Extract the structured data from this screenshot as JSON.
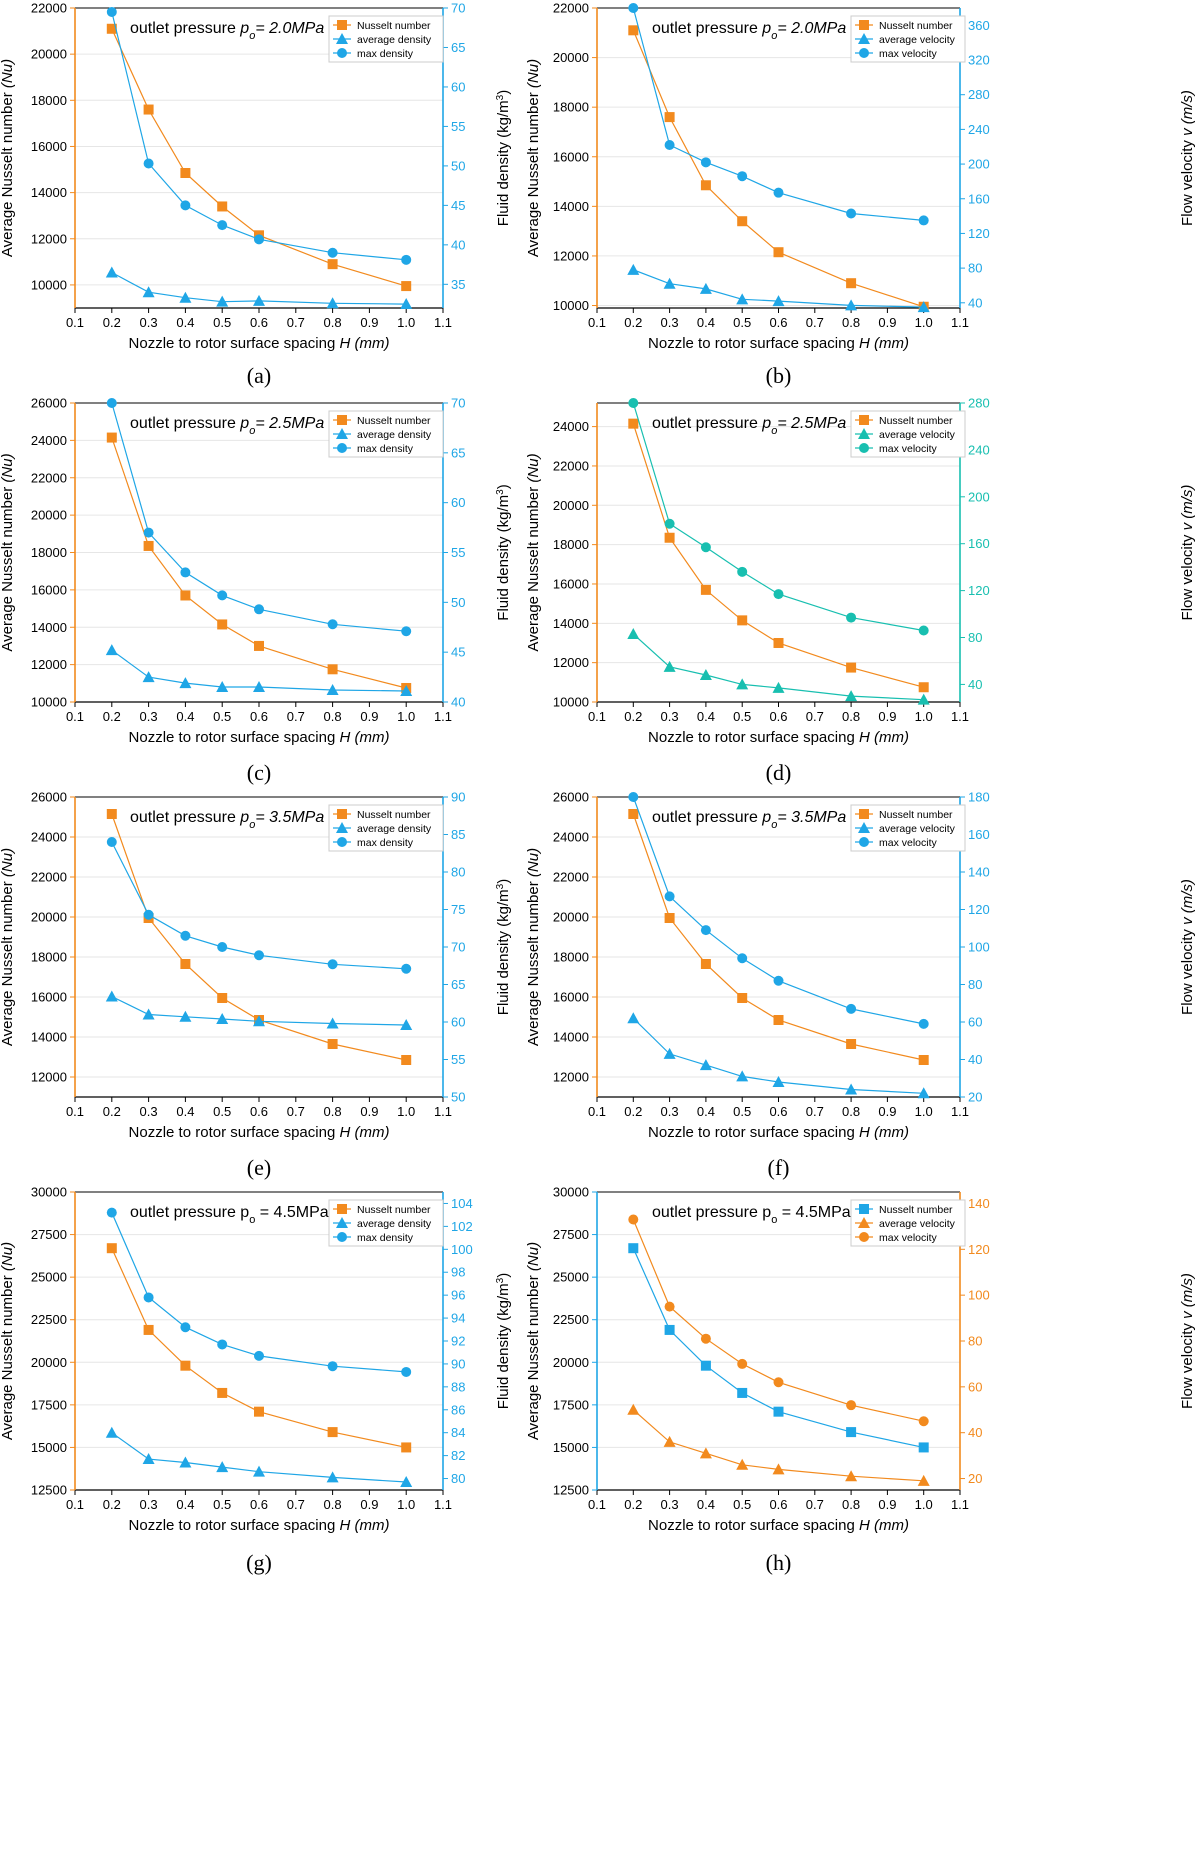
{
  "colors": {
    "orange": "#F28A1E",
    "blue": "#1FA6E6",
    "teal": "#18BFB0",
    "axis": "#000000",
    "grid": "#E6E6E6"
  },
  "common": {
    "xlabel_main": "Nozzle to rotor surface spacing ",
    "xlabel_var": "H (mm)",
    "xticks": [
      "0.1",
      "0.2",
      "0.3",
      "0.4",
      "0.5",
      "0.6",
      "0.7",
      "0.8",
      "0.9",
      "1.0",
      "1.1"
    ],
    "nu_label_main": "Average Nusselt number ",
    "nu_label_var": "(Nu)",
    "density_label": "Fluid density (kg/m",
    "density_label_sup": "3",
    "density_label_end": ")",
    "velocity_label_main": "Flow velocity ",
    "velocity_label_var": "v (m/s)"
  },
  "chart_data": [
    {
      "id": "a",
      "type": "line",
      "panel_label": "(a)",
      "title_text": "outlet pressure ",
      "title_var": "p",
      "title_sub": "o",
      "title_value": "= 2.0MPa",
      "x": [
        0.2,
        0.3,
        0.4,
        0.5,
        0.6,
        0.8,
        1.0
      ],
      "xlim": [
        0.1,
        1.1
      ],
      "left_axis": {
        "kind": "nu",
        "color": "orange",
        "ylim": [
          9000,
          22000
        ],
        "ticks": [
          "10000",
          "12000",
          "14000",
          "16000",
          "18000",
          "20000",
          "22000"
        ]
      },
      "right_axis": {
        "kind": "density",
        "color": "blue",
        "ylim": [
          32,
          70
        ],
        "ticks": [
          "35",
          "40",
          "45",
          "50",
          "55",
          "60",
          "65",
          "70"
        ]
      },
      "legend": [
        "Nusselt number",
        "average density",
        "max density"
      ],
      "series": [
        {
          "name": "Nusselt number",
          "axis": "left",
          "color": "orange",
          "marker": "square",
          "values": [
            21100,
            17600,
            14850,
            13400,
            12150,
            10900,
            9950
          ]
        },
        {
          "name": "average density",
          "axis": "right",
          "color": "blue",
          "marker": "triangle",
          "values": [
            36.5,
            34.0,
            33.3,
            32.8,
            32.9,
            32.6,
            32.5
          ]
        },
        {
          "name": "max density",
          "axis": "right",
          "color": "blue",
          "marker": "circle",
          "values": [
            69.5,
            50.3,
            45.0,
            42.5,
            40.7,
            39.0,
            38.1
          ]
        }
      ]
    },
    {
      "id": "b",
      "type": "line",
      "panel_label": "(b)",
      "title_text": "outlet pressure ",
      "title_var": "p",
      "title_sub": "o",
      "title_value": "= 2.0MPa",
      "x": [
        0.2,
        0.3,
        0.4,
        0.5,
        0.6,
        0.8,
        1.0
      ],
      "xlim": [
        0.1,
        1.1
      ],
      "left_axis": {
        "kind": "nu",
        "color": "orange",
        "ylim": [
          9900,
          22000
        ],
        "ticks": [
          "10000",
          "12000",
          "14000",
          "16000",
          "18000",
          "20000",
          "22000"
        ]
      },
      "right_axis": {
        "kind": "velocity",
        "color": "blue",
        "ylim": [
          34,
          380
        ],
        "ticks": [
          "40",
          "80",
          "120",
          "160",
          "200",
          "240",
          "280",
          "320",
          "360"
        ]
      },
      "legend": [
        "Nusselt number",
        "average velocity",
        "max velocity"
      ],
      "series": [
        {
          "name": "Nusselt number",
          "axis": "left",
          "color": "orange",
          "marker": "square",
          "values": [
            21100,
            17600,
            14850,
            13400,
            12150,
            10900,
            9950
          ]
        },
        {
          "name": "average velocity",
          "axis": "right",
          "color": "blue",
          "marker": "triangle",
          "values": [
            78,
            62,
            56,
            44,
            42,
            37,
            35
          ]
        },
        {
          "name": "max velocity",
          "axis": "right",
          "color": "blue",
          "marker": "circle",
          "values": [
            380,
            222,
            202,
            186,
            167,
            143,
            135
          ]
        }
      ]
    },
    {
      "id": "c",
      "type": "line",
      "panel_label": "(c)",
      "title_text": "outlet pressure ",
      "title_var": "p",
      "title_sub": "o",
      "title_value": "= 2.5MPa",
      "x": [
        0.2,
        0.3,
        0.4,
        0.5,
        0.6,
        0.8,
        1.0
      ],
      "xlim": [
        0.1,
        1.1
      ],
      "left_axis": {
        "kind": "nu",
        "color": "orange",
        "ylim": [
          10000,
          26000
        ],
        "ticks": [
          "10000",
          "12000",
          "14000",
          "16000",
          "18000",
          "20000",
          "22000",
          "24000",
          "26000"
        ]
      },
      "right_axis": {
        "kind": "density",
        "color": "blue",
        "ylim": [
          40,
          70
        ],
        "ticks": [
          "40",
          "45",
          "50",
          "55",
          "60",
          "65",
          "70"
        ]
      },
      "legend": [
        "Nusselt number",
        "average density",
        "max density"
      ],
      "series": [
        {
          "name": "Nusselt number",
          "axis": "left",
          "color": "orange",
          "marker": "square",
          "values": [
            24150,
            18350,
            15700,
            14150,
            13000,
            11750,
            10750
          ]
        },
        {
          "name": "average density",
          "axis": "right",
          "color": "blue",
          "marker": "triangle",
          "values": [
            45.2,
            42.5,
            41.9,
            41.5,
            41.5,
            41.2,
            41.1
          ]
        },
        {
          "name": "max density",
          "axis": "right",
          "color": "blue",
          "marker": "circle",
          "values": [
            70.0,
            57.0,
            53.0,
            50.7,
            49.3,
            47.8,
            47.1
          ]
        }
      ]
    },
    {
      "id": "d",
      "type": "line",
      "panel_label": "(d)",
      "title_text": "outlet pressure ",
      "title_var": "p",
      "title_sub": "o",
      "title_value": "= 2.5MPa",
      "x": [
        0.2,
        0.3,
        0.4,
        0.5,
        0.6,
        0.8,
        1.0
      ],
      "xlim": [
        0.1,
        1.1
      ],
      "left_axis": {
        "kind": "nu",
        "color": "orange",
        "ylim": [
          10000,
          25200
        ],
        "ticks": [
          "10000",
          "12000",
          "14000",
          "16000",
          "18000",
          "20000",
          "22000",
          "24000"
        ]
      },
      "right_axis": {
        "kind": "velocity",
        "color": "teal",
        "ylim": [
          25,
          280
        ],
        "ticks": [
          "40",
          "80",
          "120",
          "160",
          "200",
          "240",
          "280"
        ]
      },
      "legend": [
        "Nusselt number",
        "average velocity",
        "max velocity"
      ],
      "series": [
        {
          "name": "Nusselt number",
          "axis": "left",
          "color": "orange",
          "marker": "square",
          "values": [
            24150,
            18350,
            15700,
            14150,
            13000,
            11750,
            10750
          ]
        },
        {
          "name": "average velocity",
          "axis": "right",
          "color": "teal",
          "marker": "triangle",
          "values": [
            83,
            55,
            48,
            40,
            37,
            30,
            27
          ]
        },
        {
          "name": "max velocity",
          "axis": "right",
          "color": "teal",
          "marker": "circle",
          "values": [
            280,
            177,
            157,
            136,
            117,
            97,
            86
          ]
        }
      ]
    },
    {
      "id": "e",
      "type": "line",
      "panel_label": "(e)",
      "title_text": "outlet pressure ",
      "title_var": "p",
      "title_sub": "o",
      "title_value": "= 3.5MPa",
      "x": [
        0.2,
        0.3,
        0.4,
        0.5,
        0.6,
        0.8,
        1.0
      ],
      "xlim": [
        0.1,
        1.1
      ],
      "left_axis": {
        "kind": "nu",
        "color": "orange",
        "ylim": [
          11000,
          26000
        ],
        "ticks": [
          "12000",
          "14000",
          "16000",
          "18000",
          "20000",
          "22000",
          "24000",
          "26000"
        ]
      },
      "right_axis": {
        "kind": "density",
        "color": "blue",
        "ylim": [
          50,
          90
        ],
        "ticks": [
          "50",
          "55",
          "60",
          "65",
          "70",
          "75",
          "80",
          "85",
          "90"
        ]
      },
      "legend": [
        "Nusselt number",
        "average density",
        "max density"
      ],
      "series": [
        {
          "name": "Nusselt number",
          "axis": "left",
          "color": "orange",
          "marker": "square",
          "values": [
            25150,
            19950,
            17650,
            15950,
            14850,
            13650,
            12850
          ]
        },
        {
          "name": "average density",
          "axis": "right",
          "color": "blue",
          "marker": "triangle",
          "values": [
            63.4,
            61.0,
            60.7,
            60.4,
            60.1,
            59.8,
            59.6
          ]
        },
        {
          "name": "max density",
          "axis": "right",
          "color": "blue",
          "marker": "circle",
          "values": [
            84.0,
            74.3,
            71.5,
            70.0,
            68.9,
            67.7,
            67.1
          ]
        }
      ]
    },
    {
      "id": "f",
      "type": "line",
      "panel_label": "(f)",
      "title_text": "outlet pressure ",
      "title_var": "p",
      "title_sub": "o",
      "title_value": "= 3.5MPa",
      "x": [
        0.2,
        0.3,
        0.4,
        0.5,
        0.6,
        0.8,
        1.0
      ],
      "xlim": [
        0.1,
        1.1
      ],
      "left_axis": {
        "kind": "nu",
        "color": "orange",
        "ylim": [
          11000,
          26000
        ],
        "ticks": [
          "12000",
          "14000",
          "16000",
          "18000",
          "20000",
          "22000",
          "24000",
          "26000"
        ]
      },
      "right_axis": {
        "kind": "velocity",
        "color": "blue",
        "ylim": [
          20,
          180
        ],
        "ticks": [
          "20",
          "40",
          "60",
          "80",
          "100",
          "120",
          "140",
          "160",
          "180"
        ]
      },
      "legend": [
        "Nusselt number",
        "average velocity",
        "max velocity"
      ],
      "series": [
        {
          "name": "Nusselt number",
          "axis": "left",
          "color": "orange",
          "marker": "square",
          "values": [
            25150,
            19950,
            17650,
            15950,
            14850,
            13650,
            12850
          ]
        },
        {
          "name": "average velocity",
          "axis": "right",
          "color": "blue",
          "marker": "triangle",
          "values": [
            62,
            43,
            37,
            31,
            28,
            24,
            22
          ]
        },
        {
          "name": "max velocity",
          "axis": "right",
          "color": "blue",
          "marker": "circle",
          "values": [
            180,
            127,
            109,
            94,
            82,
            67,
            59
          ]
        }
      ]
    },
    {
      "id": "g",
      "type": "line",
      "panel_label": "(g)",
      "title_text": "outlet pressure p",
      "title_var": "",
      "title_sub": "o",
      "title_value": " = 4.5MPa",
      "x": [
        0.2,
        0.3,
        0.4,
        0.5,
        0.6,
        0.8,
        1.0
      ],
      "xlim": [
        0.1,
        1.1
      ],
      "left_axis": {
        "kind": "nu",
        "color": "orange",
        "ylim": [
          12500,
          30000
        ],
        "ticks": [
          "12500",
          "15000",
          "17500",
          "20000",
          "22500",
          "25000",
          "27500",
          "30000"
        ]
      },
      "right_axis": {
        "kind": "density",
        "color": "blue",
        "ylim": [
          79,
          105
        ],
        "ticks": [
          "80",
          "82",
          "84",
          "86",
          "88",
          "90",
          "92",
          "94",
          "96",
          "98",
          "100",
          "102",
          "104"
        ]
      },
      "legend": [
        "Nusselt number",
        "average density",
        "max density"
      ],
      "series": [
        {
          "name": "Nusselt number",
          "axis": "left",
          "color": "orange",
          "marker": "square",
          "values": [
            26700,
            21900,
            19800,
            18200,
            17100,
            15900,
            15000
          ]
        },
        {
          "name": "average density",
          "axis": "right",
          "color": "blue",
          "marker": "triangle",
          "values": [
            84.0,
            81.7,
            81.4,
            81.0,
            80.6,
            80.1,
            79.7
          ]
        },
        {
          "name": "max density",
          "axis": "right",
          "color": "blue",
          "marker": "circle",
          "values": [
            103.2,
            95.8,
            93.2,
            91.7,
            90.7,
            89.8,
            89.3
          ]
        }
      ]
    },
    {
      "id": "h",
      "type": "line",
      "panel_label": "(h)",
      "title_text": "outlet pressure p",
      "title_var": "",
      "title_sub": "o",
      "title_value": " = 4.5MPa",
      "x": [
        0.2,
        0.3,
        0.4,
        0.5,
        0.6,
        0.8,
        1.0
      ],
      "xlim": [
        0.1,
        1.1
      ],
      "left_axis": {
        "kind": "nu",
        "color": "blue",
        "ylim": [
          12500,
          30000
        ],
        "ticks": [
          "12500",
          "15000",
          "17500",
          "20000",
          "22500",
          "25000",
          "27500",
          "30000"
        ]
      },
      "right_axis": {
        "kind": "velocity",
        "color": "orange",
        "ylim": [
          15,
          145
        ],
        "ticks": [
          "20",
          "40",
          "60",
          "80",
          "100",
          "120",
          "140"
        ]
      },
      "legend": [
        "Nusselt number",
        "average velocity",
        "max velocity"
      ],
      "series": [
        {
          "name": "Nusselt number",
          "axis": "left",
          "color": "blue",
          "marker": "square",
          "values": [
            26700,
            21900,
            19800,
            18200,
            17100,
            15900,
            15000
          ]
        },
        {
          "name": "average velocity",
          "axis": "right",
          "color": "orange",
          "marker": "triangle",
          "values": [
            50,
            36,
            31,
            26,
            24,
            21,
            19
          ]
        },
        {
          "name": "max velocity",
          "axis": "right",
          "color": "orange",
          "marker": "circle",
          "values": [
            133,
            95,
            81,
            70,
            62,
            52,
            45
          ]
        }
      ]
    }
  ]
}
